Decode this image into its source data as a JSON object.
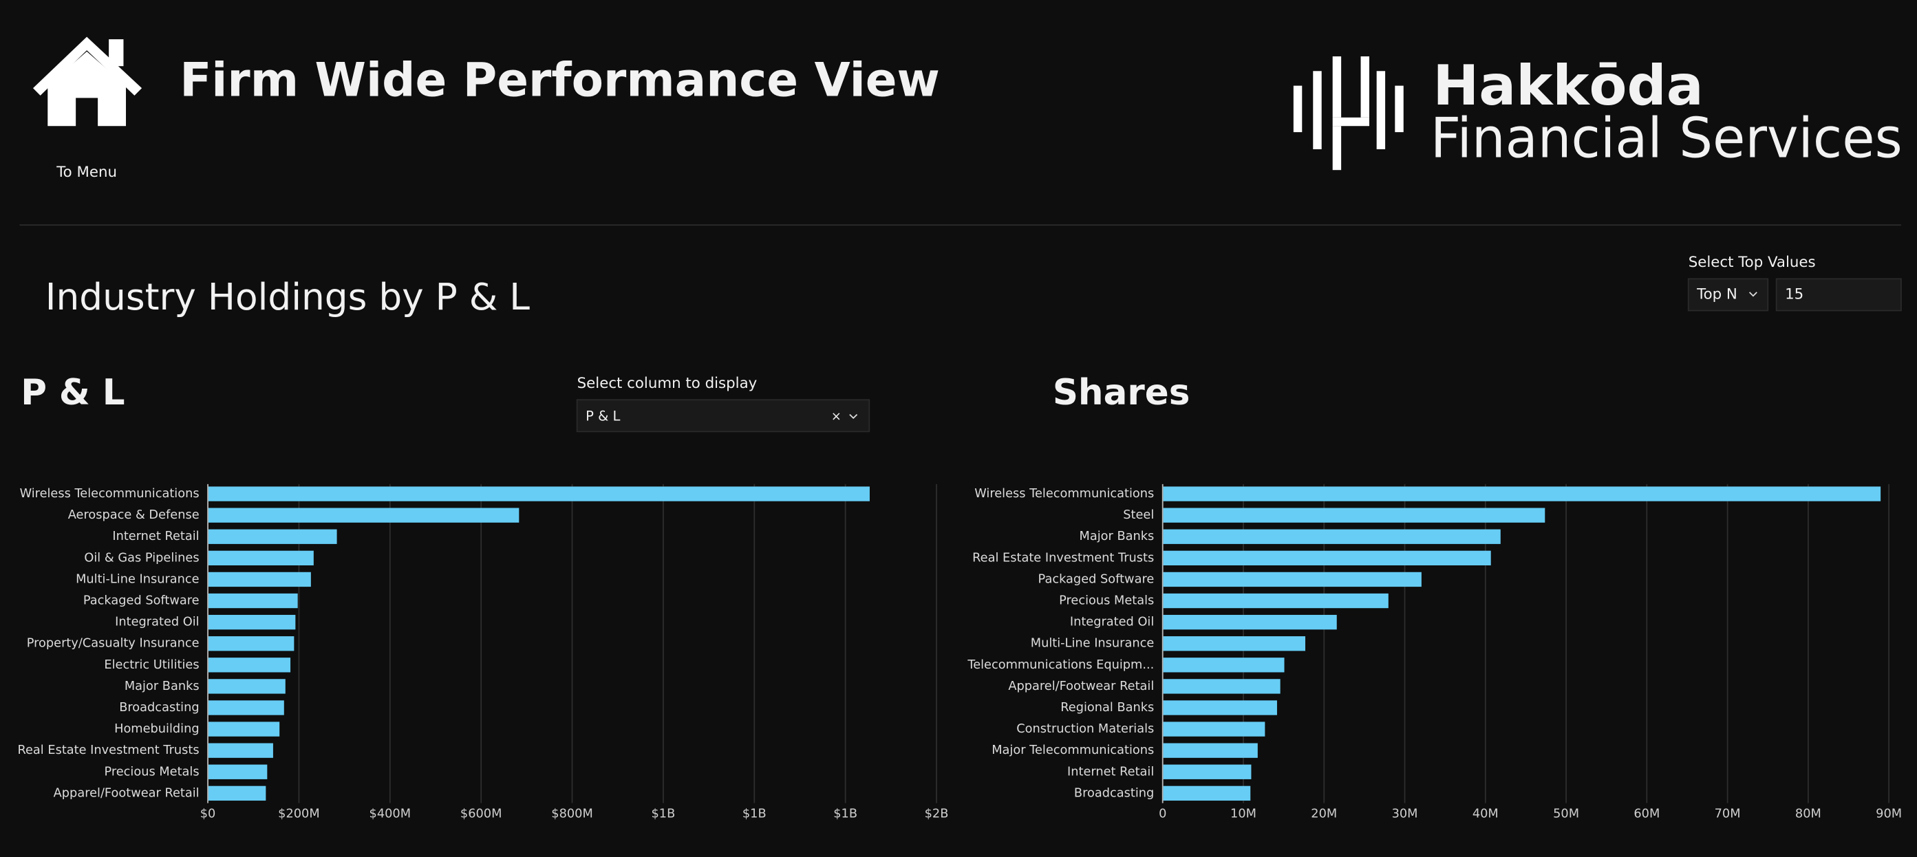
{
  "header": {
    "title": "Firm Wide Performance View",
    "menu_link": "To Menu",
    "logo_line1": "Hakkōda",
    "logo_line2": "Financial Services"
  },
  "section_title": "Industry Holdings by P & L",
  "controls": {
    "top_values": {
      "label": "Select Top Values",
      "mode": "Top N",
      "value": "15"
    },
    "column_select": {
      "label": "Select column to display",
      "value": "P & L"
    }
  },
  "chart_data": [
    {
      "type": "bar",
      "orientation": "horizontal",
      "title": "P & L",
      "color": "#67cdf5",
      "grid": true,
      "categories": [
        "Wireless Telecommunications",
        "Aerospace & Defense",
        "Internet Retail",
        "Oil & Gas Pipelines",
        "Multi-Line Insurance",
        "Packaged Software",
        "Integrated Oil",
        "Property/Casualty Insurance",
        "Electric Utilities",
        "Major Banks",
        "Broadcasting",
        "Homebuilding",
        "Real Estate Investment Trusts",
        "Precious Metals",
        "Apparel/Footwear Retail"
      ],
      "values": [
        1452000000,
        682000000,
        282000000,
        231000000,
        225000000,
        196000000,
        191000000,
        188000000,
        180000000,
        169000000,
        166000000,
        156000000,
        142000000,
        129000000,
        126000000
      ],
      "xlim": [
        0,
        1600000000
      ],
      "xticks": [
        {
          "value": 0,
          "label": "$0"
        },
        {
          "value": 200000000,
          "label": "$200M"
        },
        {
          "value": 400000000,
          "label": "$400M"
        },
        {
          "value": 600000000,
          "label": "$600M"
        },
        {
          "value": 800000000,
          "label": "$800M"
        },
        {
          "value": 1000000000,
          "label": "$1B"
        },
        {
          "value": 1200000000,
          "label": "$1B"
        },
        {
          "value": 1400000000,
          "label": "$1B"
        },
        {
          "value": 1600000000,
          "label": "$2B"
        }
      ]
    },
    {
      "type": "bar",
      "orientation": "horizontal",
      "title": "Shares",
      "color": "#67cdf5",
      "grid": true,
      "categories": [
        "Wireless Telecommunications",
        "Steel",
        "Major Banks",
        "Real Estate Investment Trusts",
        "Packaged Software",
        "Precious Metals",
        "Integrated Oil",
        "Multi-Line Insurance",
        "Telecommunications Equipm...",
        "Apparel/Footwear Retail",
        "Regional Banks",
        "Construction Materials",
        "Major Telecommunications",
        "Internet Retail",
        "Broadcasting"
      ],
      "values": [
        88900000,
        47300000,
        41800000,
        40600000,
        32000000,
        27900000,
        21500000,
        17600000,
        15000000,
        14500000,
        14100000,
        12600000,
        11700000,
        10900000,
        10800000
      ],
      "xlim": [
        0,
        90000000
      ],
      "xticks": [
        0,
        {
          "value": 10000000,
          "label": "10M"
        },
        {
          "value": 20000000,
          "label": "20M"
        },
        {
          "value": 30000000,
          "label": "30M"
        },
        {
          "value": 40000000,
          "label": "40M"
        },
        {
          "value": 50000000,
          "label": "50M"
        },
        {
          "value": 60000000,
          "label": "60M"
        },
        {
          "value": 70000000,
          "label": "70M"
        },
        {
          "value": 80000000,
          "label": "80M"
        },
        {
          "value": 90000000,
          "label": "90M"
        }
      ]
    }
  ]
}
